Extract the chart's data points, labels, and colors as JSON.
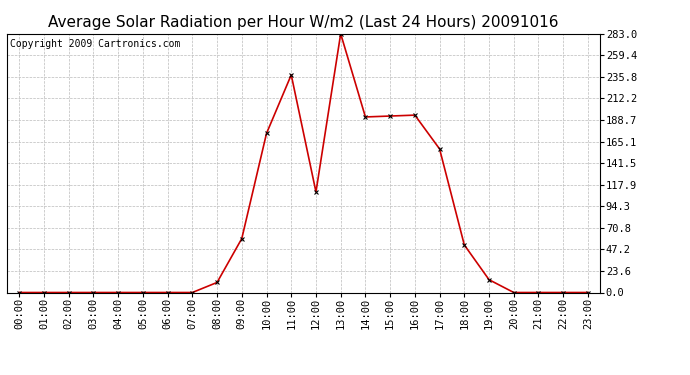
{
  "title": "Average Solar Radiation per Hour W/m2 (Last 24 Hours) 20091016",
  "copyright": "Copyright 2009 Cartronics.com",
  "hours": [
    "00:00",
    "01:00",
    "02:00",
    "03:00",
    "04:00",
    "05:00",
    "06:00",
    "07:00",
    "08:00",
    "09:00",
    "10:00",
    "11:00",
    "12:00",
    "13:00",
    "14:00",
    "15:00",
    "16:00",
    "17:00",
    "18:00",
    "19:00",
    "20:00",
    "21:00",
    "22:00",
    "23:00"
  ],
  "values": [
    0.0,
    0.0,
    0.0,
    0.0,
    0.0,
    0.0,
    0.0,
    0.0,
    11.0,
    59.0,
    174.0,
    238.0,
    110.0,
    283.0,
    192.0,
    193.0,
    194.0,
    157.0,
    52.0,
    14.0,
    0.0,
    0.0,
    0.0,
    0.0
  ],
  "yticks": [
    0.0,
    23.6,
    47.2,
    70.8,
    94.3,
    117.9,
    141.5,
    165.1,
    188.7,
    212.2,
    235.8,
    259.4,
    283.0
  ],
  "line_color": "#cc0000",
  "marker": "x",
  "marker_color": "#000000",
  "background_color": "#ffffff",
  "grid_color": "#bbbbbb",
  "title_fontsize": 11,
  "copyright_fontsize": 7,
  "tick_fontsize": 7.5,
  "ylim": [
    0.0,
    283.0
  ],
  "xlim": [
    -0.5,
    23.5
  ]
}
